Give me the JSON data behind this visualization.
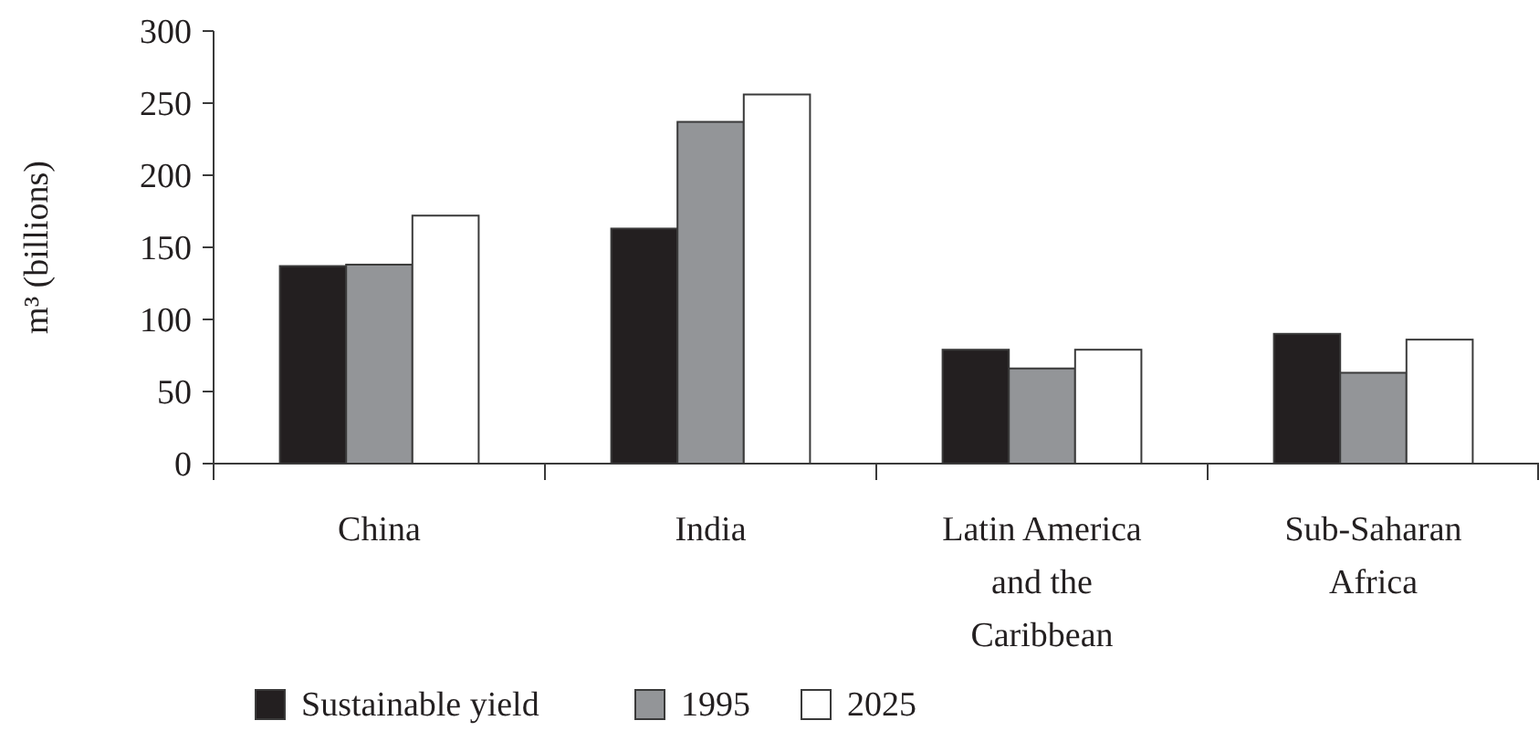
{
  "chart_data": {
    "type": "bar",
    "ylabel": "m³ (billions)",
    "categories": [
      "China",
      "India",
      "Latin America and the Caribbean",
      "Sub-Saharan Africa"
    ],
    "series": [
      {
        "name": "Sustainable yield",
        "color": "#231f20",
        "values": [
          137,
          163,
          79,
          90
        ]
      },
      {
        "name": "1995",
        "color": "#939598",
        "values": [
          138,
          237,
          66,
          63
        ]
      },
      {
        "name": "2025",
        "color": "#ffffff",
        "values": [
          172,
          256,
          79,
          86
        ]
      }
    ],
    "ylim": [
      0,
      300
    ],
    "yticks": [
      0,
      50,
      100,
      150,
      200,
      250,
      300
    ],
    "grid": false,
    "legend": "bottom left"
  }
}
